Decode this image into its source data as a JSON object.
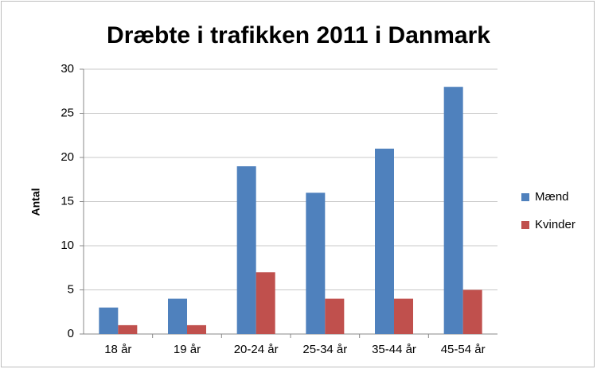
{
  "chart_data": {
    "type": "bar",
    "title": "Dræbte i trafikken 2011 i Danmark",
    "y_label": "Antal",
    "categories": [
      "18 år",
      "19 år",
      "20-24 år",
      "25-34 år",
      "35-44 år",
      "45-54 år"
    ],
    "series": [
      {
        "name": "Mænd",
        "color": "#4f81bd",
        "values": [
          3,
          4,
          19,
          16,
          21,
          28
        ]
      },
      {
        "name": "Kvinder",
        "color": "#c0504d",
        "values": [
          1,
          1,
          7,
          4,
          4,
          5
        ]
      }
    ],
    "ylim": [
      0,
      30
    ],
    "yticks": [
      0,
      5,
      10,
      15,
      20,
      25,
      30
    ],
    "grid": true,
    "legend": "right"
  }
}
